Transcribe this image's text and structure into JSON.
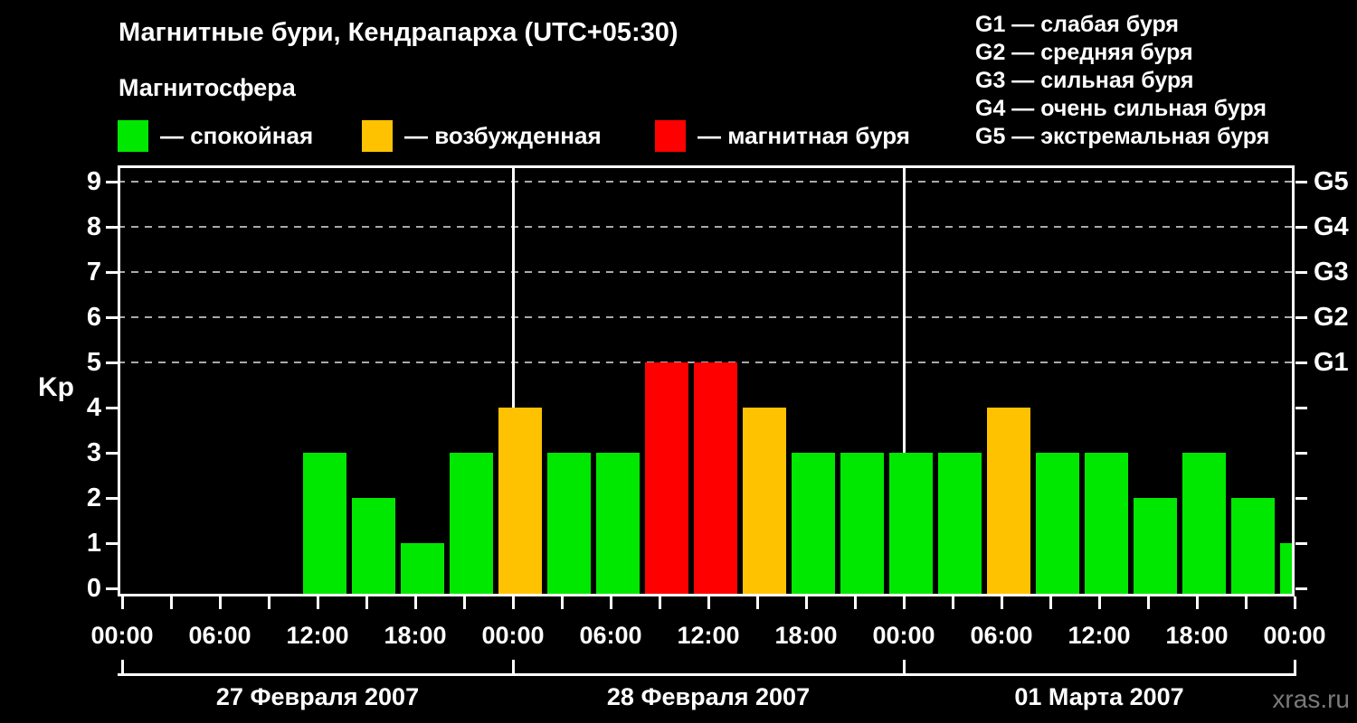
{
  "title": "Магнитные бури, Кендрапарха (UTC+05:30)",
  "subtitle": "Магнитосфера",
  "legend": {
    "items": [
      {
        "label": "— спокойная",
        "color": "#00e800"
      },
      {
        "label": "— возбужденная",
        "color": "#ffc200"
      },
      {
        "label": "— магнитная буря",
        "color": "#ff0000"
      }
    ]
  },
  "storm_legend": [
    "G1 — слабая буря",
    "G2 — средняя буря",
    "G3 — сильная буря",
    "G4 — очень сильная буря",
    "G5 — экстремальная буря"
  ],
  "watermark": "xras.ru",
  "chart_data": {
    "type": "bar",
    "ylabel": "Kp",
    "ylim": [
      0,
      9
    ],
    "yticks": [
      0,
      1,
      2,
      3,
      4,
      5,
      6,
      7,
      8,
      9
    ],
    "grid_levels": [
      5,
      6,
      7,
      8,
      9
    ],
    "right_axis": [
      {
        "level": 5,
        "label": "G1"
      },
      {
        "level": 6,
        "label": "G2"
      },
      {
        "level": 7,
        "label": "G3"
      },
      {
        "level": 8,
        "label": "G4"
      },
      {
        "level": 9,
        "label": "G5"
      }
    ],
    "bar_interval_hours": 3,
    "time_ticks": [
      "00:00",
      "06:00",
      "12:00",
      "18:00",
      "00:00",
      "06:00",
      "12:00",
      "18:00",
      "00:00",
      "06:00",
      "12:00",
      "18:00",
      "00:00"
    ],
    "colors": {
      "quiet": "#00e800",
      "excited": "#ffc200",
      "storm": "#ff0000"
    },
    "color_thresholds": {
      "quiet_max_kp": 3,
      "excited_kp": 4,
      "storm_min_kp": 5
    },
    "days": [
      {
        "date": "27 Февраля 2007",
        "kp_values": [
          null,
          null,
          null,
          null,
          3,
          2,
          1,
          3
        ]
      },
      {
        "date": "28 Февраля 2007",
        "kp_values": [
          4,
          3,
          3,
          5,
          5,
          4,
          3,
          3
        ]
      },
      {
        "date": "01 Марта 2007",
        "kp_values": [
          3,
          3,
          4,
          3,
          3,
          2,
          3,
          2
        ]
      }
    ],
    "trailing_value": 1
  }
}
